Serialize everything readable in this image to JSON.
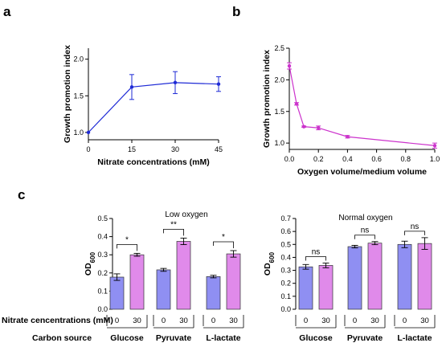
{
  "panel_labels": {
    "a": "a",
    "b": "b",
    "c": "c"
  },
  "colors": {
    "line_a": "#1f2bd6",
    "line_b": "#cc33cc",
    "bar_nitrate_0": "#8f8ff2",
    "bar_nitrate_30": "#e08aea",
    "bar_edge": "#333333"
  },
  "chart_data": [
    {
      "id": "a",
      "type": "line",
      "xlabel": "Nitrate concentrations (mM)",
      "ylabel": "Growth promotion index",
      "x_ticks": [
        "0",
        "15",
        "30",
        "45"
      ],
      "y_ticks": [
        "1.0",
        "1.5",
        "2.0"
      ],
      "xlim": [
        0,
        45
      ],
      "ylim": [
        0.9,
        2.15
      ],
      "series": [
        {
          "x": [
            0,
            15,
            30,
            45
          ],
          "y": [
            1.0,
            1.62,
            1.68,
            1.66
          ],
          "err": [
            0.0,
            0.17,
            0.15,
            0.1
          ]
        }
      ]
    },
    {
      "id": "b",
      "type": "line",
      "xlabel": "Oxygen volume/medium volume",
      "ylabel": "Growth promotion index",
      "x_ticks": [
        "0.0",
        "0.2",
        "0.4",
        "0.6",
        "0.8",
        "1.0"
      ],
      "y_ticks": [
        "1.0",
        "1.5",
        "2.0",
        "2.5"
      ],
      "xlim": [
        0,
        1.0
      ],
      "ylim": [
        0.9,
        2.5
      ],
      "series": [
        {
          "x": [
            0.0,
            0.05,
            0.1,
            0.2,
            0.4,
            1.0
          ],
          "y": [
            2.22,
            1.62,
            1.26,
            1.24,
            1.1,
            0.96
          ],
          "err": [
            0.05,
            0.02,
            0.01,
            0.03,
            0.02,
            0.04
          ]
        }
      ]
    },
    {
      "id": "c-low",
      "type": "bar",
      "title": "Low oxygen",
      "ylabel": "OD",
      "ylabel_sub": "600",
      "y_ticks": [
        "0.0",
        "0.1",
        "0.2",
        "0.3",
        "0.4",
        "0.5"
      ],
      "ylim": [
        0,
        0.5
      ],
      "categories": [
        "Glucose",
        "Pyruvate",
        "L-lactate"
      ],
      "bar_labels": [
        "0",
        "30"
      ],
      "values": [
        [
          0.177,
          0.3
        ],
        [
          0.217,
          0.374
        ],
        [
          0.18,
          0.305
        ]
      ],
      "err": [
        [
          0.018,
          0.008
        ],
        [
          0.008,
          0.018
        ],
        [
          0.007,
          0.018
        ]
      ],
      "significance": [
        "*",
        "**",
        "*"
      ]
    },
    {
      "id": "c-normal",
      "type": "bar",
      "title": "Normal oxygen",
      "ylabel": "OD",
      "ylabel_sub": "600",
      "y_ticks": [
        "0.0",
        "0.1",
        "0.2",
        "0.3",
        "0.4",
        "0.5",
        "0.6",
        "0.7"
      ],
      "ylim": [
        0,
        0.7
      ],
      "categories": [
        "Glucose",
        "Pyruvate",
        "L-lactate"
      ],
      "bar_labels": [
        "0",
        "30"
      ],
      "values": [
        [
          0.327,
          0.338
        ],
        [
          0.483,
          0.51
        ],
        [
          0.5,
          0.507
        ]
      ],
      "err": [
        [
          0.018,
          0.018
        ],
        [
          0.01,
          0.012
        ],
        [
          0.025,
          0.045
        ]
      ],
      "significance": [
        "ns",
        "ns",
        "ns"
      ]
    }
  ],
  "row_labels": {
    "nitrate": "Nitrate cencentrations (mM)",
    "carbon": "Carbon source"
  }
}
